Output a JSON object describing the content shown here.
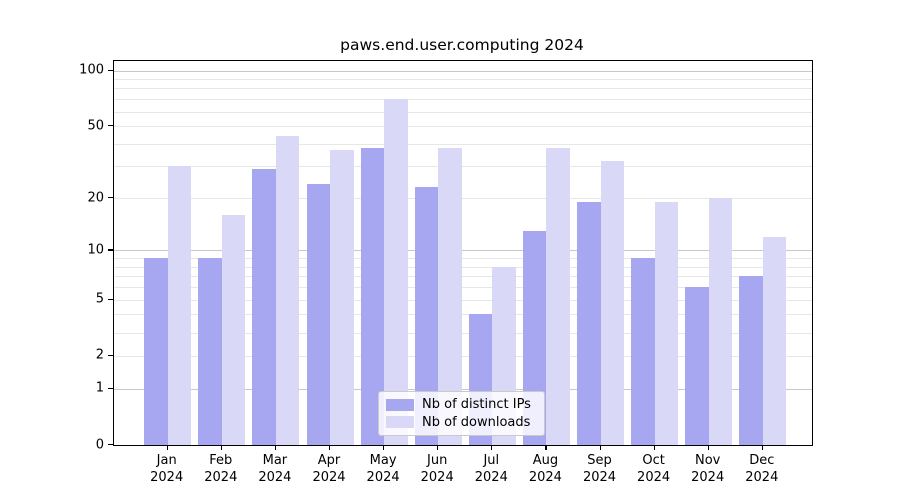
{
  "chart_data": {
    "type": "bar",
    "title": "paws.end.user.computing 2024",
    "categories": [
      "Jan",
      "Feb",
      "Mar",
      "Apr",
      "May",
      "Jun",
      "Jul",
      "Aug",
      "Sep",
      "Oct",
      "Nov",
      "Dec"
    ],
    "xtick_second_line": "2024",
    "series": [
      {
        "name": "Nb of distinct IPs",
        "color": "#a6a6f1",
        "values": [
          9,
          9,
          29,
          24,
          38,
          23,
          4,
          13,
          19,
          9,
          6,
          7
        ]
      },
      {
        "name": "Nb of downloads",
        "color": "#d9d9f7",
        "values": [
          30,
          16,
          44,
          37,
          70,
          38,
          8,
          38,
          32,
          19,
          20,
          12
        ]
      }
    ],
    "yscale": "log1p",
    "ylim": [
      0,
      113
    ],
    "ytick_labels": [
      "0",
      "1",
      "2",
      "5",
      "10",
      "20",
      "50",
      "100"
    ],
    "ytick_values": [
      0,
      1,
      2,
      5,
      10,
      20,
      50,
      100
    ],
    "major_grid_values": [
      1,
      10,
      100
    ],
    "minor_grid_values": [
      2,
      3,
      4,
      5,
      6,
      7,
      8,
      9,
      20,
      30,
      40,
      50,
      60,
      70,
      80,
      90
    ],
    "grid": true,
    "legend_position": "lower center"
  },
  "colors": {
    "bar_distinct_ips": "#a6a6f1",
    "bar_downloads": "#d9d9f7",
    "major_grid": "#c8c8c8",
    "minor_grid": "#e7e7e7",
    "axis": "#000000",
    "legend_border": "#c9c9c9",
    "background": "#ffffff"
  }
}
